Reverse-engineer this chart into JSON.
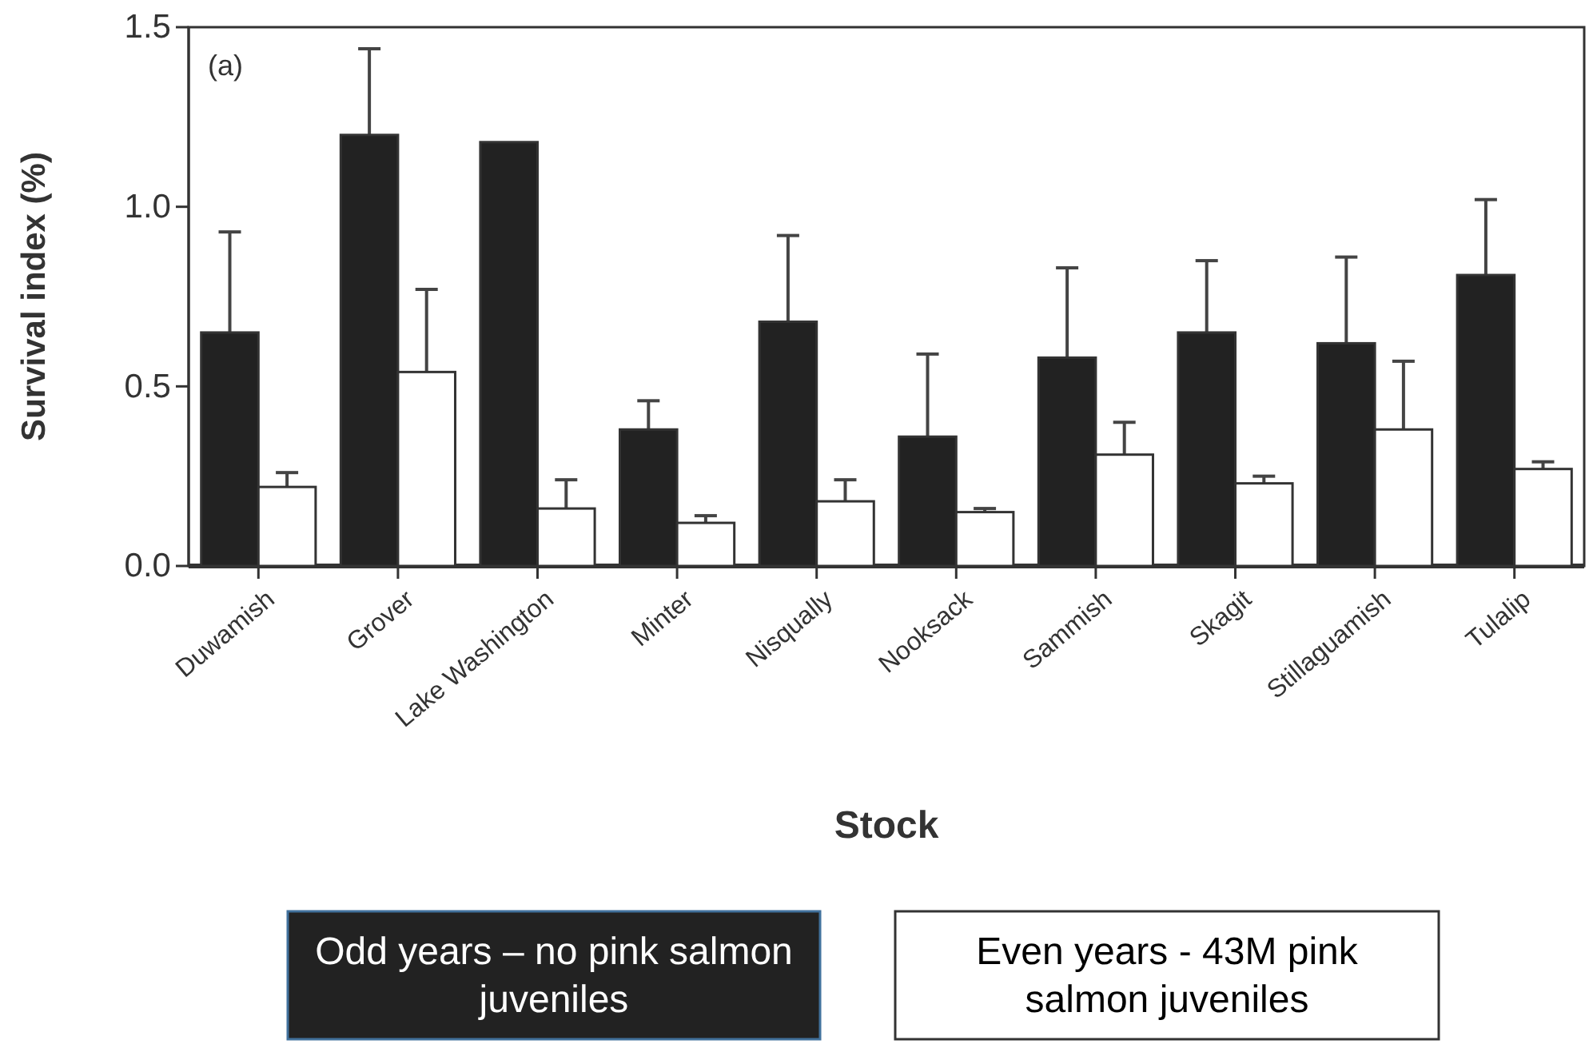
{
  "chart_data": {
    "type": "bar",
    "xlabel": "Stock",
    "ylabel": "Survival index (%)",
    "categories": [
      "Duwamish",
      "Grover",
      "Lake Washington",
      "Minter",
      "Nisqually",
      "Nooksack",
      "Sammish",
      "Skagit",
      "Stillaguamish",
      "Tulalip"
    ],
    "series": [
      {
        "name": "Odd years – no pink salmon juveniles",
        "color": "#222222",
        "values": [
          0.65,
          1.2,
          1.18,
          0.38,
          0.68,
          0.36,
          0.58,
          0.65,
          0.62,
          0.81
        ],
        "errors": [
          0.28,
          0.24,
          null,
          0.08,
          0.24,
          0.23,
          0.25,
          0.2,
          0.24,
          0.21
        ]
      },
      {
        "name": "Even years - 43M pink salmon juveniles",
        "color": "#ffffff",
        "values": [
          0.22,
          0.54,
          0.16,
          0.12,
          0.18,
          0.15,
          0.31,
          0.23,
          0.38,
          0.27
        ],
        "errors": [
          0.04,
          0.23,
          0.08,
          0.02,
          0.06,
          0.01,
          0.09,
          0.02,
          0.19,
          0.02
        ]
      }
    ],
    "ylim": [
      0,
      1.5
    ],
    "yticks": [
      {
        "value": 0,
        "label": "0.0"
      },
      {
        "value": 0.5,
        "label": "0.5"
      },
      {
        "value": 1,
        "label": "1.0"
      },
      {
        "value": 1.5,
        "label": "1.5"
      }
    ],
    "annotations": [
      "(a)"
    ],
    "legend": "bottom"
  }
}
